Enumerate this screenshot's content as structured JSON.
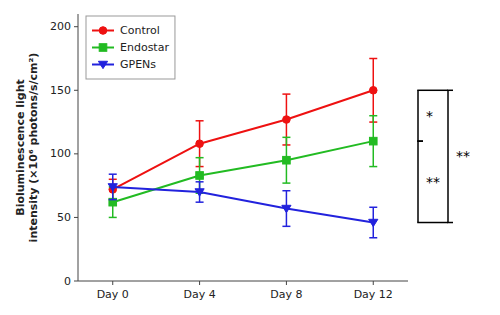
{
  "chart_data": {
    "type": "line",
    "ylabel": "Bioluminescence light\nintensity (×10⁶ photons/s/cm²)",
    "categories": [
      "Day 0",
      "Day 4",
      "Day 8",
      "Day 12"
    ],
    "series": [
      {
        "name": "Control",
        "color": "#ee1111",
        "marker": "circle",
        "values": [
          72,
          108,
          127,
          150
        ],
        "errors": [
          8,
          18,
          20,
          25
        ]
      },
      {
        "name": "Endostar",
        "color": "#22bb22",
        "marker": "square",
        "values": [
          62,
          83,
          95,
          110
        ],
        "errors": [
          12,
          14,
          18,
          20
        ]
      },
      {
        "name": "GPENs",
        "color": "#2222dd",
        "marker": "triangle-down",
        "values": [
          74,
          70,
          57,
          46
        ],
        "errors": [
          10,
          8,
          14,
          12
        ]
      }
    ],
    "ylim": [
      0,
      210
    ],
    "yticks": [
      0,
      50,
      100,
      150,
      200
    ],
    "grid": false,
    "legend": "upper left",
    "annotations": [
      {
        "text": "*",
        "between": [
          "Control",
          "Endostar"
        ],
        "category": "Day 12"
      },
      {
        "text": "**",
        "between": [
          "Endostar",
          "GPENs"
        ],
        "category": "Day 12"
      },
      {
        "text": "**",
        "between": [
          "Control",
          "GPENs"
        ],
        "category": "Day 12"
      }
    ]
  }
}
